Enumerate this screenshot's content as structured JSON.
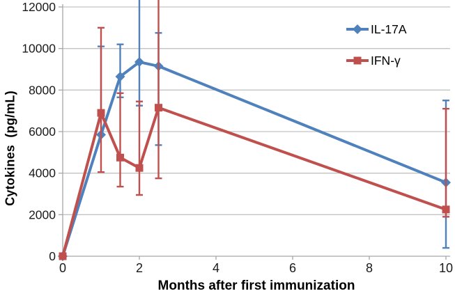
{
  "chart_data": {
    "type": "line",
    "title": "",
    "xlabel": "Months after first immunization",
    "ylabel": "Cytokines  (pg/mL)",
    "xlim": [
      0,
      10
    ],
    "ylim": [
      0,
      12000
    ],
    "x_ticks": [
      0,
      2,
      4,
      6,
      8,
      10
    ],
    "y_ticks": [
      0,
      2000,
      4000,
      6000,
      8000,
      10000,
      12000
    ],
    "grid": "horizontal",
    "legend": {
      "position": "top-right-inside",
      "transparent_background": true
    },
    "colors": {
      "il17a_blue": "#4F81BD",
      "ifng_red": "#C0504D",
      "gridline": "#c3c3c3",
      "axis": "#a6a6a6",
      "tick_text": "#1a1a1a"
    },
    "note": "Error bars with upper value above 12000 are clipped at the top of the plot (no cap drawn). Null lower bounds are not visible in the figure.",
    "series": [
      {
        "name": "IL-17A",
        "color": "#4F81BD",
        "marker": "diamond",
        "x": [
          0,
          1,
          1.5,
          2,
          2.5,
          10
        ],
        "y": [
          0,
          5850,
          8650,
          9350,
          9150,
          3550
        ],
        "error_upper": [
          null,
          10100,
          10200,
          12500,
          10750,
          7500
        ],
        "error_lower": [
          null,
          null,
          7650,
          7250,
          5350,
          400
        ]
      },
      {
        "name": "IFN-γ",
        "color": "#C0504D",
        "marker": "square",
        "x": [
          0,
          1,
          1.5,
          2,
          2.5,
          10
        ],
        "y": [
          0,
          6900,
          4750,
          4250,
          7150,
          2250
        ],
        "error_upper": [
          null,
          11000,
          7850,
          7450,
          12500,
          7100
        ],
        "error_lower": [
          null,
          4050,
          3350,
          2950,
          3750,
          1900
        ]
      }
    ]
  }
}
